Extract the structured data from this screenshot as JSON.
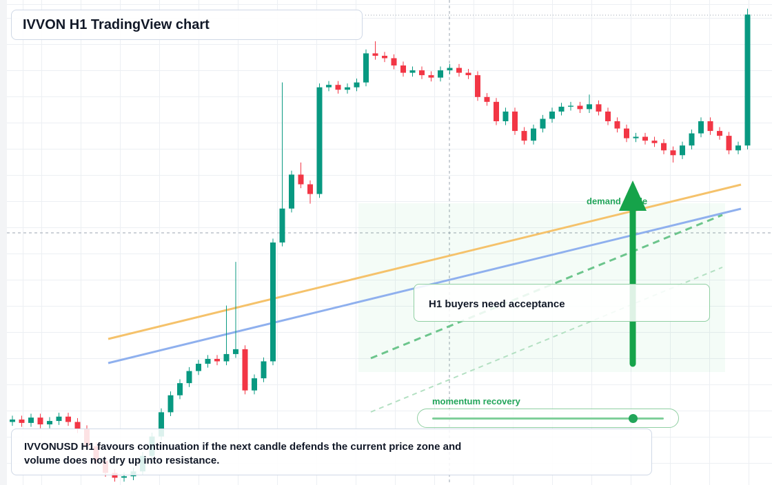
{
  "chart_data": {
    "type": "candlestick",
    "title": "IVVON H1 TradingView chart",
    "annotations": {
      "zone": "demand guide",
      "callout": "H1 buyers need acceptance",
      "slider": "momentum recovery",
      "note": "IVVONUSD H1 favours continuation if the next candle defends the current price zone and volume does not dry up into resistance."
    },
    "up_color": "#089981",
    "down_color": "#f23645",
    "ylim": [
      0,
      100
    ],
    "open": [
      13,
      13.5,
      12.8,
      13.9,
      12.5,
      13.2,
      14.1,
      13,
      11.5,
      8,
      5,
      2.5,
      1.5,
      1.8,
      2.8,
      6,
      10,
      15,
      18.5,
      21,
      23.5,
      25,
      26,
      25.5,
      27,
      28,
      19.5,
      22,
      25.5,
      50,
      57,
      64,
      62,
      60,
      82,
      82.5,
      81.5,
      82,
      83,
      89,
      88.5,
      88,
      86.5,
      85,
      85.5,
      84.5,
      84,
      85.5,
      86,
      85,
      84.5,
      80,
      79,
      75,
      77,
      73,
      71,
      73.5,
      75.5,
      77,
      78,
      78.2,
      77.5,
      78.5,
      77,
      75,
      73.5,
      71.5,
      71.8,
      71,
      70.5,
      69,
      68,
      70,
      72.5,
      75,
      73,
      72,
      69,
      70
    ],
    "high": [
      14.3,
      14.3,
      14.7,
      14.7,
      14,
      14.9,
      14.9,
      13.8,
      12.3,
      8.8,
      5.8,
      3.3,
      2.6,
      3.6,
      6.8,
      10.8,
      15.8,
      19.3,
      21.8,
      24.3,
      25.8,
      26.8,
      26.8,
      37,
      46,
      28.8,
      22.8,
      26.3,
      50.8,
      83,
      64.8,
      66.5,
      62.8,
      82.8,
      83.3,
      83.3,
      82.8,
      83.8,
      89.8,
      91.5,
      89.3,
      88.8,
      87.3,
      86.3,
      86.3,
      85.3,
      86.3,
      86.8,
      86.8,
      85.8,
      85.3,
      80.8,
      79.8,
      77.8,
      77.8,
      73.8,
      74.3,
      76.3,
      77.8,
      78.8,
      79,
      79,
      80.5,
      79.3,
      77.8,
      75.8,
      74.3,
      72.6,
      72.6,
      71.8,
      71.3,
      69.8,
      70.8,
      73.3,
      75.8,
      75.8,
      73.8,
      72.8,
      70.8,
      98.2
    ],
    "low": [
      12.2,
      12,
      12,
      11.7,
      11.7,
      12.4,
      12.2,
      10.7,
      7.2,
      4.2,
      1.7,
      0.7,
      0.7,
      1,
      2,
      5.2,
      9.2,
      14.2,
      17.7,
      20.2,
      22.7,
      24.2,
      24.7,
      24.7,
      26.2,
      18.7,
      18.7,
      21.2,
      24.7,
      49.2,
      56.2,
      61.2,
      58,
      59.2,
      81.2,
      80.7,
      80.7,
      81.2,
      82.2,
      87.7,
      87.2,
      85.7,
      84.2,
      84.2,
      83.7,
      83.2,
      83.2,
      84.7,
      84.2,
      83.7,
      79.2,
      78.2,
      74.2,
      74.2,
      72.2,
      70.2,
      70.2,
      72.7,
      74.7,
      76.2,
      77.2,
      76.7,
      76.7,
      76.2,
      74.2,
      72.7,
      70.7,
      70.7,
      70.2,
      69.7,
      68.2,
      66.5,
      67.2,
      69.2,
      71.7,
      72.2,
      71.2,
      68.2,
      68.2,
      69.2
    ],
    "close": [
      13.5,
      12.8,
      13.9,
      12.5,
      13.2,
      14.1,
      13,
      11.5,
      8,
      5,
      2.5,
      1.5,
      1.8,
      2.8,
      6,
      10,
      15,
      18.5,
      21,
      23.5,
      25,
      26,
      25.5,
      27,
      28,
      19.5,
      22,
      25.5,
      50,
      57,
      64,
      62,
      60,
      82,
      82.5,
      81.5,
      82,
      83,
      89,
      88.5,
      88,
      86.5,
      85,
      85.5,
      84.5,
      84,
      85.5,
      86,
      85,
      84.5,
      80,
      79,
      75,
      77,
      73,
      71,
      73.5,
      75.5,
      77,
      78,
      78.2,
      77.5,
      78.5,
      77,
      75,
      73.5,
      71.5,
      71.8,
      71,
      70.5,
      69,
      68,
      70,
      72.5,
      75,
      73,
      72,
      69,
      70,
      97
    ]
  }
}
